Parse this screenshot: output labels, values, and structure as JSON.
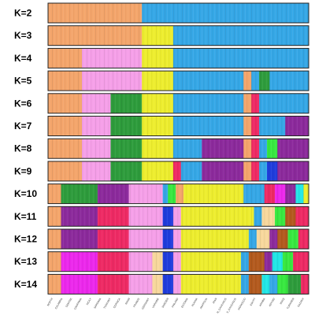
{
  "chart_data": {
    "type": "stacked-bar",
    "title": "",
    "xlabel": "",
    "ylabel": "",
    "ylim": [
      0,
      1
    ],
    "grid": false,
    "legend": "none",
    "populations": [
      "NORTH",
      "CALABRIA",
      "CENTRE",
      "CAMPANIA",
      "SICILY",
      "SARDINIA",
      "TUSCANY",
      "CORSICA",
      "SPAIN",
      "FRANCE",
      "GERMANY",
      "UKRAINE",
      "SWEDEN",
      "FINLAND",
      "ESTONIA",
      "RUSSIA",
      "ANATOLIA",
      "IRAN",
      "N_CAUCASUS",
      "S_CAUCASUS",
      "MOROCCO",
      "EGYPT",
      "ARABIA",
      "ADYGEI",
      "IRAQI",
      "TURKMEN",
      "KAZAKH"
    ],
    "ancestry_colors": [
      "#f4a56b",
      "#35a7e6",
      "#eded2e",
      "#f59fe8",
      "#2e9c3c",
      "#8c2a9c",
      "#ee2a64",
      "#1f3cdc",
      "#38e840",
      "#f7d79c",
      "#b35a1e",
      "#22e6e6",
      "#ec28ec",
      "#7a7a7a"
    ],
    "panels": [
      {
        "k": 2,
        "label": "K=2",
        "segments": [
          {
            "c": 0,
            "w": 0.36
          },
          {
            "c": 1,
            "w": 0.64
          }
        ]
      },
      {
        "k": 3,
        "label": "K=3",
        "segments": [
          {
            "c": 0,
            "w": 0.36
          },
          {
            "c": 2,
            "w": 0.12
          },
          {
            "c": 1,
            "w": 0.52
          }
        ]
      },
      {
        "k": 4,
        "label": "K=4",
        "segments": [
          {
            "c": 0,
            "w": 0.13
          },
          {
            "c": 3,
            "w": 0.23
          },
          {
            "c": 2,
            "w": 0.12
          },
          {
            "c": 1,
            "w": 0.52
          }
        ]
      },
      {
        "k": 5,
        "label": "K=5",
        "segments": [
          {
            "c": 0,
            "w": 0.13
          },
          {
            "c": 3,
            "w": 0.23
          },
          {
            "c": 2,
            "w": 0.12
          },
          {
            "c": 1,
            "w": 0.27
          },
          {
            "c": 0,
            "w": 0.03
          },
          {
            "c": 1,
            "w": 0.03
          },
          {
            "c": 4,
            "w": 0.04
          },
          {
            "c": 1,
            "w": 0.15
          }
        ]
      },
      {
        "k": 6,
        "label": "K=6",
        "segments": [
          {
            "c": 0,
            "w": 0.13
          },
          {
            "c": 3,
            "w": 0.11
          },
          {
            "c": 4,
            "w": 0.12
          },
          {
            "c": 2,
            "w": 0.12
          },
          {
            "c": 1,
            "w": 0.27
          },
          {
            "c": 0,
            "w": 0.03
          },
          {
            "c": 6,
            "w": 0.03
          },
          {
            "c": 1,
            "w": 0.19
          }
        ]
      },
      {
        "k": 7,
        "label": "K=7",
        "segments": [
          {
            "c": 0,
            "w": 0.13
          },
          {
            "c": 3,
            "w": 0.11
          },
          {
            "c": 4,
            "w": 0.12
          },
          {
            "c": 2,
            "w": 0.12
          },
          {
            "c": 1,
            "w": 0.27
          },
          {
            "c": 0,
            "w": 0.03
          },
          {
            "c": 6,
            "w": 0.03
          },
          {
            "c": 1,
            "w": 0.1
          },
          {
            "c": 5,
            "w": 0.09
          }
        ]
      },
      {
        "k": 8,
        "label": "K=8",
        "segments": [
          {
            "c": 0,
            "w": 0.13
          },
          {
            "c": 3,
            "w": 0.11
          },
          {
            "c": 4,
            "w": 0.12
          },
          {
            "c": 2,
            "w": 0.12
          },
          {
            "c": 1,
            "w": 0.11
          },
          {
            "c": 5,
            "w": 0.16
          },
          {
            "c": 0,
            "w": 0.03
          },
          {
            "c": 6,
            "w": 0.03
          },
          {
            "c": 1,
            "w": 0.03
          },
          {
            "c": 8,
            "w": 0.04
          },
          {
            "c": 5,
            "w": 0.12
          }
        ]
      },
      {
        "k": 9,
        "label": "K=9",
        "segments": [
          {
            "c": 0,
            "w": 0.13
          },
          {
            "c": 3,
            "w": 0.11
          },
          {
            "c": 4,
            "w": 0.12
          },
          {
            "c": 2,
            "w": 0.12
          },
          {
            "c": 6,
            "w": 0.03
          },
          {
            "c": 1,
            "w": 0.08
          },
          {
            "c": 5,
            "w": 0.16
          },
          {
            "c": 0,
            "w": 0.03
          },
          {
            "c": 6,
            "w": 0.03
          },
          {
            "c": 1,
            "w": 0.03
          },
          {
            "c": 7,
            "w": 0.04
          },
          {
            "c": 5,
            "w": 0.12
          }
        ]
      },
      {
        "k": 10,
        "label": "K=10",
        "segments": [
          {
            "c": 0,
            "w": 0.05
          },
          {
            "c": 4,
            "w": 0.14
          },
          {
            "c": 5,
            "w": 0.12
          },
          {
            "c": 3,
            "w": 0.13
          },
          {
            "c": 1,
            "w": 0.02
          },
          {
            "c": 8,
            "w": 0.03
          },
          {
            "c": 0,
            "w": 0.03
          },
          {
            "c": 2,
            "w": 0.23
          },
          {
            "c": 1,
            "w": 0.08
          },
          {
            "c": 6,
            "w": 0.04
          },
          {
            "c": 12,
            "w": 0.04
          },
          {
            "c": 5,
            "w": 0.04
          },
          {
            "c": 11,
            "w": 0.03
          },
          {
            "c": 2,
            "w": 0.02
          }
        ]
      },
      {
        "k": 11,
        "label": "K=11",
        "segments": [
          {
            "c": 0,
            "w": 0.05
          },
          {
            "c": 5,
            "w": 0.14
          },
          {
            "c": 6,
            "w": 0.12
          },
          {
            "c": 3,
            "w": 0.13
          },
          {
            "c": 7,
            "w": 0.04
          },
          {
            "c": 3,
            "w": 0.03
          },
          {
            "c": 2,
            "w": 0.28
          },
          {
            "c": 1,
            "w": 0.03
          },
          {
            "c": 9,
            "w": 0.05
          },
          {
            "c": 8,
            "w": 0.04
          },
          {
            "c": 10,
            "w": 0.04
          },
          {
            "c": 6,
            "w": 0.05
          }
        ]
      },
      {
        "k": 12,
        "label": "K=12",
        "segments": [
          {
            "c": 0,
            "w": 0.05
          },
          {
            "c": 5,
            "w": 0.14
          },
          {
            "c": 6,
            "w": 0.12
          },
          {
            "c": 3,
            "w": 0.13
          },
          {
            "c": 7,
            "w": 0.04
          },
          {
            "c": 3,
            "w": 0.03
          },
          {
            "c": 2,
            "w": 0.26
          },
          {
            "c": 1,
            "w": 0.03
          },
          {
            "c": 9,
            "w": 0.05
          },
          {
            "c": 5,
            "w": 0.03
          },
          {
            "c": 10,
            "w": 0.04
          },
          {
            "c": 8,
            "w": 0.04
          },
          {
            "c": 6,
            "w": 0.04
          }
        ]
      },
      {
        "k": 13,
        "label": "K=13",
        "segments": [
          {
            "c": 0,
            "w": 0.05
          },
          {
            "c": 12,
            "w": 0.14
          },
          {
            "c": 6,
            "w": 0.12
          },
          {
            "c": 3,
            "w": 0.09
          },
          {
            "c": 9,
            "w": 0.04
          },
          {
            "c": 7,
            "w": 0.04
          },
          {
            "c": 3,
            "w": 0.03
          },
          {
            "c": 2,
            "w": 0.23
          },
          {
            "c": 1,
            "w": 0.03
          },
          {
            "c": 10,
            "w": 0.06
          },
          {
            "c": 5,
            "w": 0.03
          },
          {
            "c": 11,
            "w": 0.04
          },
          {
            "c": 8,
            "w": 0.04
          },
          {
            "c": 6,
            "w": 0.06
          }
        ]
      },
      {
        "k": 14,
        "label": "K=14",
        "segments": [
          {
            "c": 0,
            "w": 0.05
          },
          {
            "c": 12,
            "w": 0.14
          },
          {
            "c": 6,
            "w": 0.12
          },
          {
            "c": 3,
            "w": 0.09
          },
          {
            "c": 9,
            "w": 0.04
          },
          {
            "c": 7,
            "w": 0.04
          },
          {
            "c": 3,
            "w": 0.03
          },
          {
            "c": 2,
            "w": 0.23
          },
          {
            "c": 1,
            "w": 0.03
          },
          {
            "c": 10,
            "w": 0.05
          },
          {
            "c": 11,
            "w": 0.03
          },
          {
            "c": 1,
            "w": 0.03
          },
          {
            "c": 8,
            "w": 0.04
          },
          {
            "c": 4,
            "w": 0.05
          },
          {
            "c": 6,
            "w": 0.03
          }
        ]
      }
    ]
  }
}
